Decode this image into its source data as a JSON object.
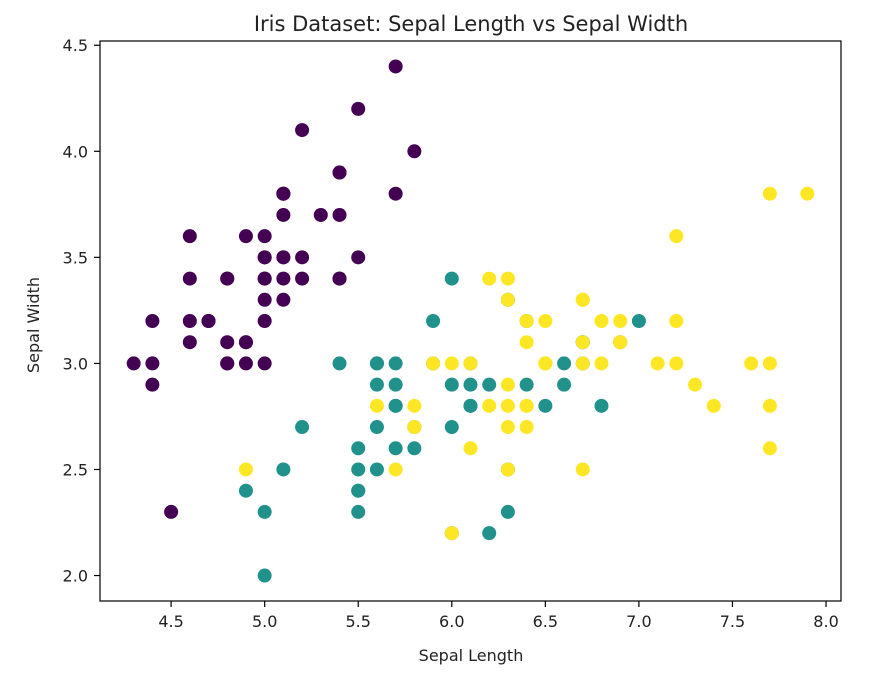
{
  "chart_data": {
    "type": "scatter",
    "title": "Iris Dataset: Sepal Length vs Sepal Width",
    "xlabel": "Sepal Length",
    "ylabel": "Sepal Width",
    "xlim": [
      4.12,
      8.08
    ],
    "ylim": [
      1.88,
      4.52
    ],
    "xticks": [
      "4.5",
      "5.0",
      "5.5",
      "6.0",
      "6.5",
      "7.0",
      "7.5",
      "8.0"
    ],
    "yticks": [
      "2.0",
      "2.5",
      "3.0",
      "3.5",
      "4.0",
      "4.5"
    ],
    "grid": false,
    "series": [
      {
        "color": "#440154",
        "points": [
          [
            5.1,
            3.5
          ],
          [
            4.9,
            3.0
          ],
          [
            4.7,
            3.2
          ],
          [
            4.6,
            3.1
          ],
          [
            5.0,
            3.6
          ],
          [
            5.4,
            3.9
          ],
          [
            4.6,
            3.4
          ],
          [
            5.0,
            3.4
          ],
          [
            4.4,
            2.9
          ],
          [
            4.9,
            3.1
          ],
          [
            5.4,
            3.7
          ],
          [
            4.8,
            3.4
          ],
          [
            4.8,
            3.0
          ],
          [
            4.3,
            3.0
          ],
          [
            5.8,
            4.0
          ],
          [
            5.7,
            4.4
          ],
          [
            5.4,
            3.9
          ],
          [
            5.1,
            3.5
          ],
          [
            5.7,
            3.8
          ],
          [
            5.1,
            3.8
          ],
          [
            5.4,
            3.4
          ],
          [
            5.1,
            3.7
          ],
          [
            4.6,
            3.6
          ],
          [
            5.1,
            3.3
          ],
          [
            4.8,
            3.4
          ],
          [
            5.0,
            3.0
          ],
          [
            5.0,
            3.4
          ],
          [
            5.2,
            3.5
          ],
          [
            5.2,
            3.4
          ],
          [
            4.7,
            3.2
          ],
          [
            4.8,
            3.1
          ],
          [
            5.4,
            3.4
          ],
          [
            5.2,
            4.1
          ],
          [
            5.5,
            4.2
          ],
          [
            4.9,
            3.1
          ],
          [
            5.0,
            3.2
          ],
          [
            5.5,
            3.5
          ],
          [
            4.9,
            3.6
          ],
          [
            4.4,
            3.0
          ],
          [
            5.1,
            3.4
          ],
          [
            5.0,
            3.5
          ],
          [
            4.5,
            2.3
          ],
          [
            4.4,
            3.2
          ],
          [
            5.0,
            3.5
          ],
          [
            5.1,
            3.8
          ],
          [
            4.8,
            3.0
          ],
          [
            5.1,
            3.8
          ],
          [
            4.6,
            3.2
          ],
          [
            5.3,
            3.7
          ],
          [
            5.0,
            3.3
          ]
        ]
      },
      {
        "color": "#21918c",
        "points": [
          [
            7.0,
            3.2
          ],
          [
            6.4,
            3.2
          ],
          [
            6.9,
            3.1
          ],
          [
            5.5,
            2.3
          ],
          [
            6.5,
            2.8
          ],
          [
            5.7,
            2.8
          ],
          [
            6.3,
            3.3
          ],
          [
            4.9,
            2.4
          ],
          [
            6.6,
            2.9
          ],
          [
            5.2,
            2.7
          ],
          [
            5.0,
            2.0
          ],
          [
            5.9,
            3.0
          ],
          [
            6.0,
            2.2
          ],
          [
            6.1,
            2.9
          ],
          [
            5.6,
            2.9
          ],
          [
            6.7,
            3.1
          ],
          [
            5.6,
            3.0
          ],
          [
            5.8,
            2.7
          ],
          [
            6.2,
            2.2
          ],
          [
            5.6,
            2.5
          ],
          [
            5.9,
            3.2
          ],
          [
            6.1,
            2.8
          ],
          [
            6.3,
            2.5
          ],
          [
            6.1,
            2.8
          ],
          [
            6.4,
            2.9
          ],
          [
            6.6,
            3.0
          ],
          [
            6.8,
            2.8
          ],
          [
            6.7,
            3.0
          ],
          [
            6.0,
            2.9
          ],
          [
            5.7,
            2.6
          ],
          [
            5.5,
            2.4
          ],
          [
            5.5,
            2.4
          ],
          [
            5.8,
            2.7
          ],
          [
            6.0,
            2.7
          ],
          [
            5.4,
            3.0
          ],
          [
            6.0,
            3.4
          ],
          [
            6.7,
            3.1
          ],
          [
            6.3,
            2.3
          ],
          [
            5.6,
            3.0
          ],
          [
            5.5,
            2.5
          ],
          [
            5.5,
            2.6
          ],
          [
            6.1,
            3.0
          ],
          [
            5.8,
            2.6
          ],
          [
            5.0,
            2.3
          ],
          [
            5.6,
            2.7
          ],
          [
            5.7,
            3.0
          ],
          [
            5.7,
            2.9
          ],
          [
            6.2,
            2.9
          ],
          [
            5.1,
            2.5
          ],
          [
            5.7,
            2.8
          ]
        ]
      },
      {
        "color": "#fde725",
        "points": [
          [
            6.3,
            3.3
          ],
          [
            5.8,
            2.7
          ],
          [
            7.1,
            3.0
          ],
          [
            6.3,
            2.9
          ],
          [
            6.5,
            3.0
          ],
          [
            7.6,
            3.0
          ],
          [
            4.9,
            2.5
          ],
          [
            7.3,
            2.9
          ],
          [
            6.7,
            2.5
          ],
          [
            7.2,
            3.6
          ],
          [
            6.5,
            3.2
          ],
          [
            6.4,
            2.7
          ],
          [
            6.8,
            3.0
          ],
          [
            5.7,
            2.5
          ],
          [
            5.8,
            2.8
          ],
          [
            6.4,
            3.2
          ],
          [
            6.5,
            3.0
          ],
          [
            7.7,
            3.8
          ],
          [
            7.7,
            2.6
          ],
          [
            6.0,
            2.2
          ],
          [
            6.9,
            3.2
          ],
          [
            5.6,
            2.8
          ],
          [
            7.7,
            2.8
          ],
          [
            6.3,
            2.7
          ],
          [
            6.7,
            3.3
          ],
          [
            7.2,
            3.2
          ],
          [
            6.2,
            2.8
          ],
          [
            6.1,
            3.0
          ],
          [
            6.4,
            2.8
          ],
          [
            7.2,
            3.0
          ],
          [
            7.4,
            2.8
          ],
          [
            7.9,
            3.8
          ],
          [
            6.4,
            2.8
          ],
          [
            6.3,
            2.8
          ],
          [
            6.1,
            2.6
          ],
          [
            7.7,
            3.0
          ],
          [
            6.3,
            3.4
          ],
          [
            6.4,
            3.1
          ],
          [
            6.0,
            3.0
          ],
          [
            6.9,
            3.1
          ],
          [
            6.7,
            3.1
          ],
          [
            6.9,
            3.1
          ],
          [
            5.8,
            2.7
          ],
          [
            6.8,
            3.2
          ],
          [
            6.7,
            3.3
          ],
          [
            6.7,
            3.0
          ],
          [
            6.3,
            2.5
          ],
          [
            6.5,
            3.0
          ],
          [
            6.2,
            3.4
          ],
          [
            5.9,
            3.0
          ]
        ]
      }
    ]
  }
}
